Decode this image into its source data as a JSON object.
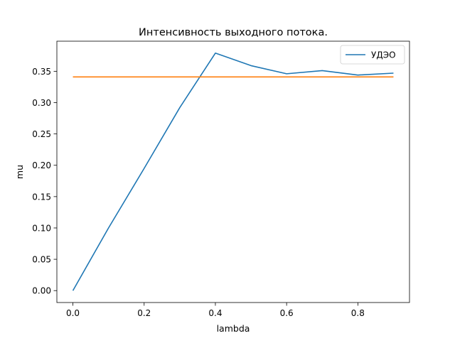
{
  "chart_data": {
    "type": "line",
    "title": "Интенсивность выходного потока.",
    "xlabel": "lambda",
    "ylabel": "mu",
    "xlim": [
      -0.045,
      0.945
    ],
    "ylim": [
      -0.019,
      0.398
    ],
    "xticks": [
      0.0,
      0.2,
      0.4,
      0.6,
      0.8
    ],
    "xtick_labels": [
      "0.0",
      "0.2",
      "0.4",
      "0.6",
      "0.8"
    ],
    "yticks": [
      0.0,
      0.05,
      0.1,
      0.15,
      0.2,
      0.25,
      0.3,
      0.35
    ],
    "ytick_labels": [
      "0.00",
      "0.05",
      "0.10",
      "0.15",
      "0.20",
      "0.25",
      "0.30",
      "0.35"
    ],
    "grid": false,
    "legend_position": "top-right",
    "series": [
      {
        "name": "УДЭО",
        "color": "#1f77b4",
        "in_legend": true,
        "x": [
          0.0,
          0.1,
          0.2,
          0.3,
          0.4,
          0.5,
          0.6,
          0.7,
          0.8,
          0.9
        ],
        "y": [
          0.0,
          0.1,
          0.195,
          0.292,
          0.379,
          0.359,
          0.346,
          0.351,
          0.344,
          0.347
        ]
      },
      {
        "name": "",
        "color": "#ff7f0e",
        "in_legend": false,
        "x": [
          0.0,
          0.9
        ],
        "y": [
          0.341,
          0.341
        ]
      }
    ]
  }
}
